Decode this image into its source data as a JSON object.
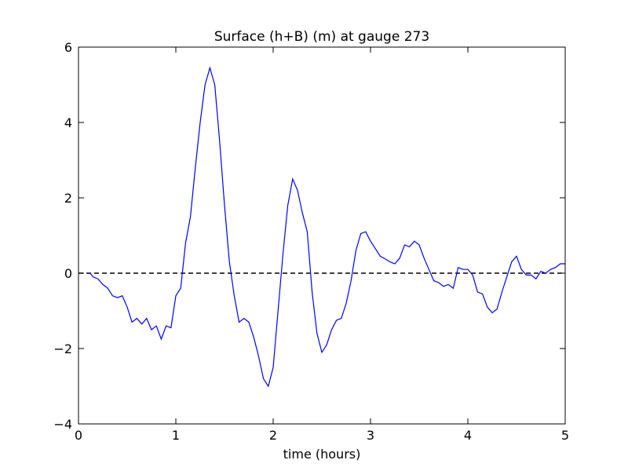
{
  "chart_data": {
    "type": "line",
    "title": "Surface (h+B) (m) at gauge 273",
    "x_label": "time (hours)",
    "x": [
      0.12,
      0.15,
      0.2,
      0.25,
      0.3,
      0.35,
      0.4,
      0.45,
      0.5,
      0.55,
      0.6,
      0.65,
      0.7,
      0.75,
      0.8,
      0.85,
      0.9,
      0.95,
      1.0,
      1.05,
      1.1,
      1.15,
      1.2,
      1.25,
      1.3,
      1.35,
      1.4,
      1.45,
      1.5,
      1.55,
      1.6,
      1.65,
      1.7,
      1.75,
      1.8,
      1.85,
      1.9,
      1.95,
      2.0,
      2.05,
      2.1,
      2.15,
      2.2,
      2.25,
      2.3,
      2.35,
      2.4,
      2.45,
      2.5,
      2.55,
      2.6,
      2.65,
      2.7,
      2.75,
      2.8,
      2.85,
      2.9,
      2.95,
      3.0,
      3.05,
      3.1,
      3.15,
      3.2,
      3.25,
      3.3,
      3.35,
      3.4,
      3.45,
      3.5,
      3.55,
      3.6,
      3.65,
      3.7,
      3.75,
      3.8,
      3.85,
      3.9,
      3.95,
      4.0,
      4.05,
      4.1,
      4.15,
      4.2,
      4.25,
      4.3,
      4.35,
      4.4,
      4.45,
      4.5,
      4.55,
      4.6,
      4.65,
      4.7,
      4.75,
      4.8,
      4.85,
      4.9,
      4.95,
      5.0
    ],
    "series": [
      {
        "color": "#0000ff",
        "values": [
          0,
          -0.1,
          -0.15,
          -0.3,
          -0.4,
          -0.6,
          -0.65,
          -0.6,
          -0.9,
          -1.3,
          -1.2,
          -1.35,
          -1.2,
          -1.5,
          -1.4,
          -1.75,
          -1.4,
          -1.45,
          -0.6,
          -0.4,
          0.8,
          1.5,
          2.8,
          4.0,
          5.0,
          5.45,
          5.0,
          3.5,
          1.8,
          0.3,
          -0.6,
          -1.3,
          -1.2,
          -1.3,
          -1.7,
          -2.2,
          -2.8,
          -3.0,
          -2.5,
          -1.0,
          0.5,
          1.8,
          2.5,
          2.2,
          1.6,
          1.1,
          -0.5,
          -1.6,
          -2.1,
          -1.9,
          -1.5,
          -1.25,
          -1.2,
          -0.8,
          -0.2,
          0.6,
          1.05,
          1.1,
          0.85,
          0.65,
          0.45,
          0.38,
          0.3,
          0.25,
          0.4,
          0.75,
          0.7,
          0.85,
          0.75,
          0.4,
          0.1,
          -0.2,
          -0.25,
          -0.35,
          -0.3,
          -0.4,
          0.15,
          0.1,
          0.1,
          -0.05,
          -0.5,
          -0.55,
          -0.9,
          -1.05,
          -0.95,
          -0.5,
          -0.1,
          0.3,
          0.45,
          0.1,
          -0.05,
          -0.05,
          -0.15,
          0.05,
          0,
          0.1,
          0.15,
          0.25,
          0.25
        ]
      }
    ],
    "hline": {
      "y": 0,
      "color": "#000000",
      "dashed": true
    },
    "xlim": [
      0,
      5
    ],
    "xticks": [
      0,
      1,
      2,
      3,
      4,
      5
    ],
    "ylim": [
      -4,
      6
    ],
    "yticks": [
      -4,
      -2,
      0,
      2,
      4,
      6
    ]
  }
}
